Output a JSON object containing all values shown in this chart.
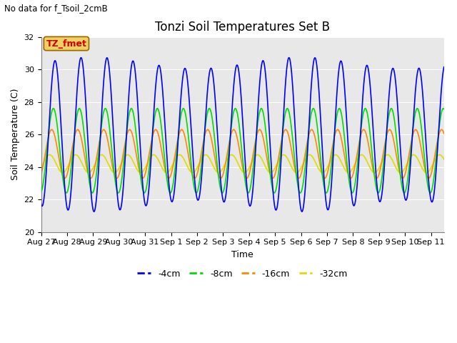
{
  "title": "Tonzi Soil Temperatures Set B",
  "no_data_text": "No data for f_Tsoil_2cmB",
  "legend_label_text": "TZ_fmet",
  "xlabel": "Time",
  "ylabel": "Soil Temperature (C)",
  "ylim": [
    20,
    32
  ],
  "yticks": [
    20,
    22,
    24,
    26,
    28,
    30,
    32
  ],
  "bg_color": "#e8e8e8",
  "fig_bg_color": "#ffffff",
  "line_colors": {
    "-4cm": "#0000ff",
    "-8cm": "#00dd00",
    "-16cm": "#ff8800",
    "-32cm": "#dddd00"
  },
  "legend_entries": [
    "-4cm",
    "-8cm",
    "-16cm",
    "-32cm"
  ],
  "x_tick_labels": [
    "Aug 27",
    "Aug 28",
    "Aug 29",
    "Aug 30",
    "Aug 31",
    "Sep 1",
    "Sep 2",
    "Sep 3",
    "Sep 4",
    "Sep 5",
    "Sep 6",
    "Sep 7",
    "Sep 8",
    "Sep 9",
    "Sep 10",
    "Sep 11"
  ],
  "total_days": 15.5,
  "blue_mean": 26.0,
  "blue_amp": 4.4,
  "blue_phase": -1.8,
  "green_mean": 25.0,
  "green_amp": 2.6,
  "green_phase": -1.4,
  "orange_mean": 24.8,
  "orange_amp": 1.5,
  "orange_phase": -1.0,
  "yellow_mean": 24.2,
  "yellow_amp": 0.55,
  "yellow_phase": -0.5,
  "title_fontsize": 12,
  "axis_fontsize": 9,
  "tick_fontsize": 8,
  "legend_fontsize": 9
}
